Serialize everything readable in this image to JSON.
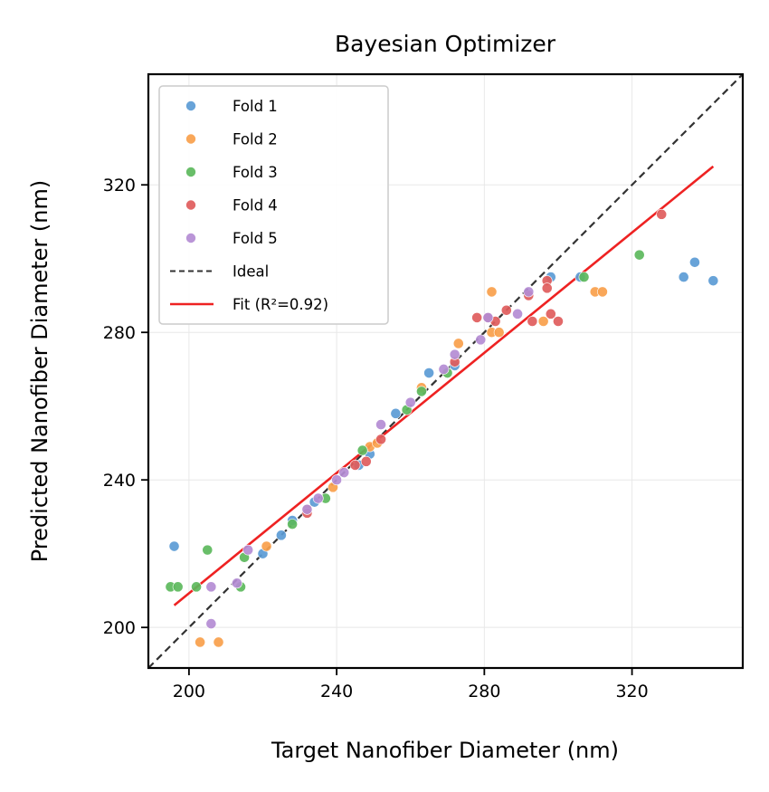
{
  "chart_data": {
    "type": "scatter",
    "title": "Bayesian Optimizer",
    "xlabel": "Target Nanofiber Diameter (nm)",
    "ylabel": "Predicted Nanofiber  Diameter (nm)",
    "xlim": [
      189,
      350
    ],
    "ylim": [
      189,
      350
    ],
    "xticks": [
      200,
      240,
      280,
      320
    ],
    "yticks": [
      200,
      240,
      280,
      320
    ],
    "grid": true,
    "legend_position": "upper-left",
    "series": [
      {
        "name": "Fold 1",
        "color": "#5b9bd5",
        "points": [
          [
            196,
            222
          ],
          [
            220,
            220
          ],
          [
            225,
            225
          ],
          [
            228,
            229
          ],
          [
            234,
            234
          ],
          [
            246,
            244
          ],
          [
            249,
            247
          ],
          [
            256,
            258
          ],
          [
            265,
            269
          ],
          [
            272,
            271
          ],
          [
            298,
            295
          ],
          [
            306,
            295
          ],
          [
            334,
            295
          ],
          [
            337,
            299
          ],
          [
            342,
            294
          ]
        ]
      },
      {
        "name": "Fold 2",
        "color": "#f9a04b",
        "points": [
          [
            203,
            196
          ],
          [
            208,
            196
          ],
          [
            221,
            222
          ],
          [
            232,
            232
          ],
          [
            239,
            238
          ],
          [
            249,
            249
          ],
          [
            251,
            250
          ],
          [
            263,
            265
          ],
          [
            273,
            277
          ],
          [
            282,
            291
          ],
          [
            282,
            280
          ],
          [
            284,
            280
          ],
          [
            296,
            283
          ],
          [
            310,
            291
          ],
          [
            312,
            291
          ]
        ]
      },
      {
        "name": "Fold 3",
        "color": "#5cb85c",
        "points": [
          [
            195,
            211
          ],
          [
            197,
            211
          ],
          [
            202,
            211
          ],
          [
            205,
            221
          ],
          [
            214,
            211
          ],
          [
            215,
            219
          ],
          [
            228,
            228
          ],
          [
            237,
            235
          ],
          [
            247,
            248
          ],
          [
            259,
            259
          ],
          [
            263,
            264
          ],
          [
            270,
            269
          ],
          [
            307,
            295
          ],
          [
            322,
            301
          ]
        ]
      },
      {
        "name": "Fold 4",
        "color": "#e05c5c",
        "points": [
          [
            232,
            231
          ],
          [
            245,
            244
          ],
          [
            248,
            245
          ],
          [
            252,
            251
          ],
          [
            272,
            272
          ],
          [
            278,
            284
          ],
          [
            281,
            284
          ],
          [
            283,
            283
          ],
          [
            286,
            286
          ],
          [
            292,
            290
          ],
          [
            293,
            283
          ],
          [
            297,
            294
          ],
          [
            297,
            292
          ],
          [
            298,
            285
          ],
          [
            300,
            283
          ],
          [
            328,
            312
          ]
        ]
      },
      {
        "name": "Fold 5",
        "color": "#b48cd4",
        "points": [
          [
            206,
            201
          ],
          [
            206,
            211
          ],
          [
            213,
            212
          ],
          [
            216,
            221
          ],
          [
            232,
            232
          ],
          [
            235,
            235
          ],
          [
            240,
            240
          ],
          [
            242,
            242
          ],
          [
            252,
            255
          ],
          [
            260,
            261
          ],
          [
            269,
            270
          ],
          [
            272,
            274
          ],
          [
            279,
            278
          ],
          [
            281,
            284
          ],
          [
            289,
            285
          ],
          [
            292,
            291
          ]
        ]
      }
    ],
    "ideal_line": {
      "name": "Ideal",
      "color": "#333333",
      "from": [
        189,
        189
      ],
      "to": [
        350,
        350
      ]
    },
    "fit_line": {
      "name": "Fit (R²=0.92)",
      "color": "#ee2222",
      "from": [
        196,
        206
      ],
      "to": [
        342,
        325
      ]
    }
  }
}
